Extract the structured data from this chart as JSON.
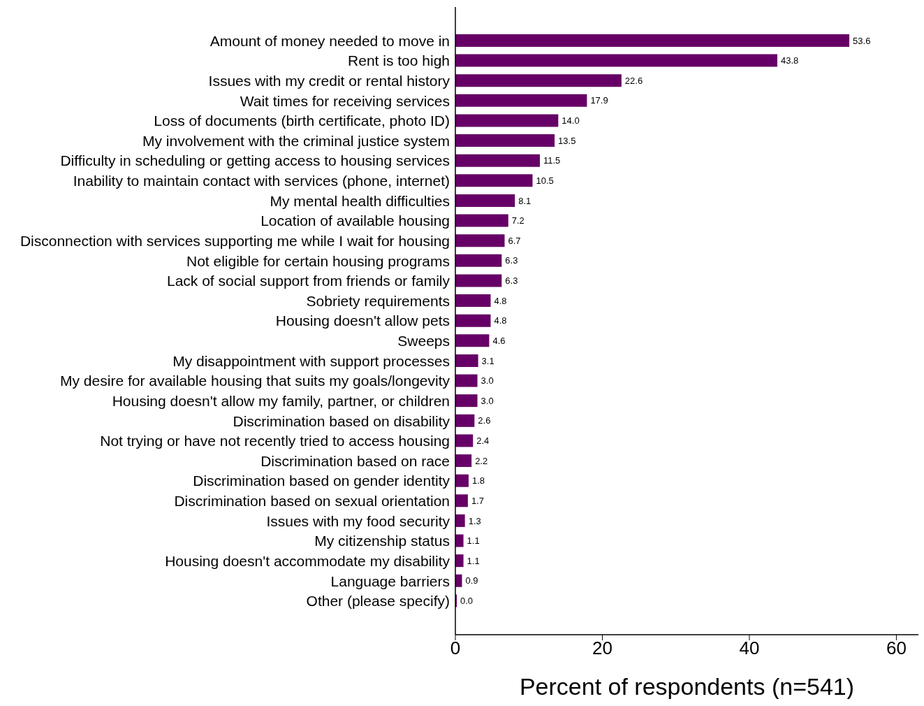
{
  "chart_data": {
    "type": "bar",
    "orientation": "horizontal",
    "xlabel": "Percent of respondents (n=541)",
    "categories": [
      "Amount of money needed to move in",
      "Rent is too high",
      "Issues with my credit or rental history",
      "Wait times for receiving services",
      "Loss of documents (birth certificate, photo ID)",
      "My involvement with the criminal justice system",
      "Difficulty in scheduling or getting access to housing services",
      "Inability to maintain contact with services (phone, internet)",
      "My mental health difficulties",
      "Location of available housing",
      "Disconnection with services supporting me while I wait for housing",
      "Not eligible for certain housing programs",
      "Lack of social support from friends or family",
      "Sobriety requirements",
      "Housing doesn't allow pets",
      "Sweeps",
      "My disappointment with support processes",
      "My desire for available housing that suits my goals/longevity",
      "Housing doesn't allow my family, partner, or children",
      "Discrimination based on disability",
      "Not trying or have not recently tried to access housing",
      "Discrimination based on race",
      "Discrimination based on gender identity",
      "Discrimination based on sexual orientation",
      "Issues with my food security",
      "My citizenship status",
      "Housing doesn't accommodate my disability",
      "Language barriers",
      "Other (please specify)"
    ],
    "values": [
      53.6,
      43.8,
      22.6,
      17.9,
      14.0,
      13.5,
      11.5,
      10.5,
      8.1,
      7.2,
      6.7,
      6.3,
      6.3,
      4.8,
      4.8,
      4.6,
      3.1,
      3.0,
      3.0,
      2.6,
      2.4,
      2.2,
      1.8,
      1.7,
      1.3,
      1.1,
      1.1,
      0.9,
      0.0
    ],
    "value_labels": [
      "53.6",
      "43.8",
      "22.6",
      "17.9",
      "14.0",
      "13.5",
      "11.5",
      "10.5",
      "8.1",
      "7.2",
      "6.7",
      "6.3",
      "6.3",
      "4.8",
      "4.8",
      "4.6",
      "3.1",
      "3.0",
      "3.0",
      "2.6",
      "2.4",
      "2.2",
      "1.8",
      "1.7",
      "1.3",
      "1.1",
      "1.1",
      "0.9",
      "0.0"
    ],
    "color": "#660066",
    "xlim": [
      0,
      63
    ],
    "xticks": [
      0,
      20,
      40,
      60
    ],
    "grid": false,
    "legend": false
  }
}
